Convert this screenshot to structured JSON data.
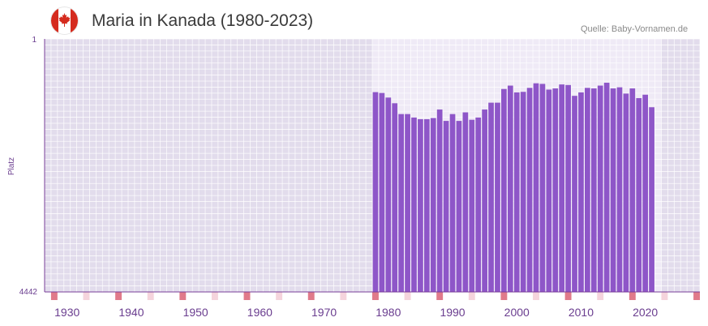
{
  "header": {
    "title": "Maria in Kanada (1980-2023)",
    "source": "Quelle: Baby-Vornamen.de",
    "flag_icon": "canada-flag-icon"
  },
  "colors": {
    "bar": "#8e56c8",
    "axis": "#7a3f9a",
    "tick_text": "#6a3d8f",
    "highlight_marker": "#e07a8a",
    "light_marker": "#f5d4dc"
  },
  "chart_data": {
    "type": "bar",
    "title": "Maria in Kanada (1980-2023)",
    "xlabel": "",
    "ylabel": "Platz",
    "y_inverted": true,
    "ylim": [
      1,
      4442
    ],
    "y_ticks": [
      "1",
      "4442"
    ],
    "xlim": [
      1927,
      2028
    ],
    "x_ticks": [
      1930,
      1940,
      1950,
      1960,
      1970,
      1980,
      1990,
      2000,
      2010,
      2020
    ],
    "highlighted_range": [
      1978,
      2022
    ],
    "decade_markers": [
      1928,
      1938,
      1948,
      1958,
      1968,
      1978,
      1988,
      1998,
      2008,
      2018,
      2028
    ],
    "half_decade_markers": [
      1933,
      1943,
      1953,
      1963,
      1973,
      1983,
      1993,
      2003,
      2013,
      2023
    ],
    "x": [
      1978,
      1979,
      1980,
      1981,
      1982,
      1983,
      1984,
      1985,
      1986,
      1987,
      1988,
      1989,
      1990,
      1991,
      1992,
      1993,
      1994,
      1995,
      1996,
      1997,
      1998,
      1999,
      2000,
      2001,
      2002,
      2003,
      2004,
      2005,
      2006,
      2007,
      2008,
      2009,
      2010,
      2011,
      2012,
      2013,
      2014,
      2015,
      2016,
      2017,
      2018,
      2019,
      2020,
      2021,
      2022
    ],
    "values": [
      935,
      950,
      1030,
      1130,
      1320,
      1320,
      1380,
      1410,
      1410,
      1390,
      1240,
      1440,
      1320,
      1440,
      1290,
      1420,
      1380,
      1240,
      1120,
      1120,
      880,
      820,
      940,
      930,
      860,
      780,
      790,
      890,
      870,
      800,
      810,
      1000,
      940,
      860,
      870,
      820,
      770,
      870,
      850,
      960,
      870,
      1040,
      980,
      1200,
      4442
    ]
  }
}
